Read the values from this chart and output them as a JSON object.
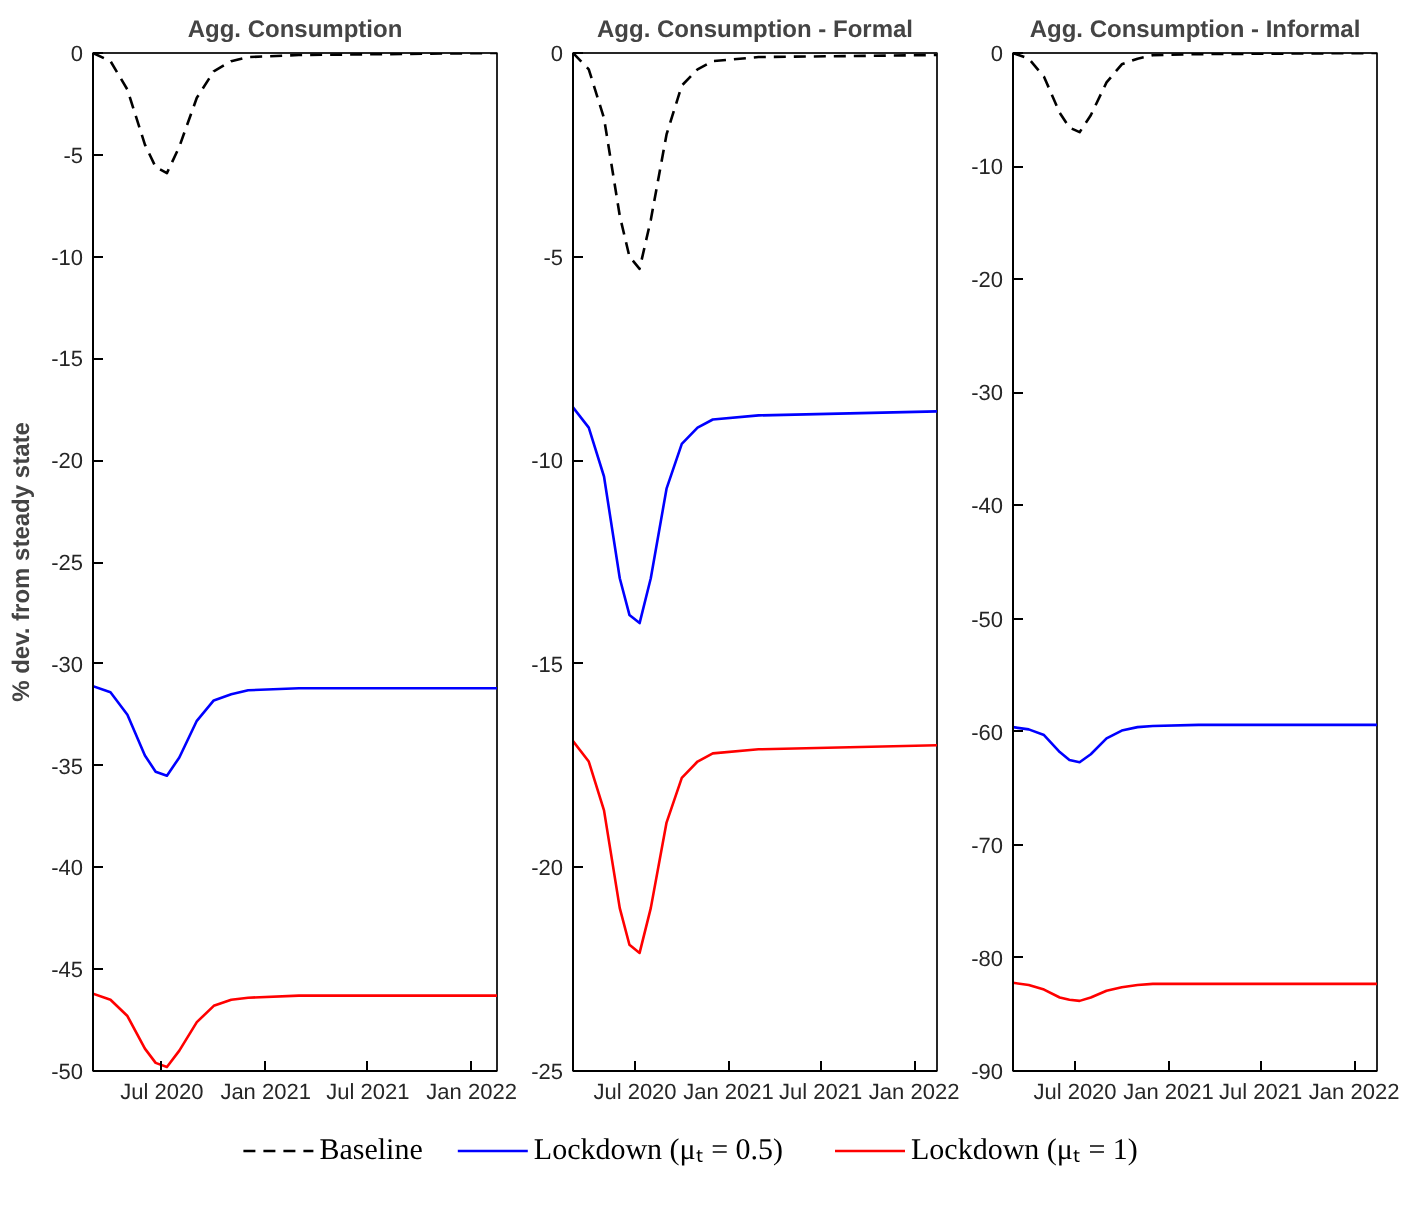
{
  "chart_data": [
    {
      "type": "line",
      "title": "Agg. Consumption",
      "ylabel": "% dev. from steady state",
      "legend": "bottom",
      "x": [
        "2020-03-01",
        "2020-04-01",
        "2020-05-01",
        "2020-06-01",
        "2020-06-20",
        "2020-07-10",
        "2020-08-01",
        "2020-09-01",
        "2020-10-01",
        "2020-11-01",
        "2020-12-01",
        "2021-03-01",
        "2022-02-15"
      ],
      "xlim": [
        "2020-03-01",
        "2022-02-15"
      ],
      "xticks": [
        {
          "value": "2020-07-01",
          "label": "Jul 2020"
        },
        {
          "value": "2021-01-01",
          "label": "Jan 2021"
        },
        {
          "value": "2021-07-01",
          "label": "Jul 2021"
        },
        {
          "value": "2022-01-01",
          "label": "Jan 2022"
        }
      ],
      "ylim": [
        -50,
        0
      ],
      "yticks": [
        -50,
        -45,
        -40,
        -35,
        -30,
        -25,
        -20,
        -15,
        -10,
        -5,
        0
      ],
      "series": [
        {
          "name": "Baseline",
          "color": "#000000",
          "line_style": "dashed",
          "values": [
            0,
            -0.4,
            -1.8,
            -4.5,
            -5.6,
            -5.9,
            -4.6,
            -2.2,
            -0.9,
            -0.4,
            -0.2,
            -0.1,
            0
          ]
        },
        {
          "name": "Lockdown (μₜ = 0.5)",
          "color": "#0000ff",
          "values": [
            -31.1,
            -31.4,
            -32.5,
            -34.5,
            -35.3,
            -35.5,
            -34.6,
            -32.8,
            -31.8,
            -31.5,
            -31.3,
            -31.2,
            -31.2
          ]
        },
        {
          "name": "Lockdown (μₜ = 1)",
          "color": "#ff0000",
          "values": [
            -46.2,
            -46.5,
            -47.3,
            -48.9,
            -49.6,
            -49.8,
            -49.0,
            -47.6,
            -46.8,
            -46.5,
            -46.4,
            -46.3,
            -46.3
          ]
        }
      ]
    },
    {
      "type": "line",
      "title": "Agg. Consumption - Formal",
      "x": [
        "2020-03-01",
        "2020-04-01",
        "2020-05-01",
        "2020-06-01",
        "2020-06-20",
        "2020-07-10",
        "2020-08-01",
        "2020-09-01",
        "2020-10-01",
        "2020-11-01",
        "2020-12-01",
        "2021-03-01",
        "2022-02-15"
      ],
      "xlim": [
        "2020-03-01",
        "2022-02-15"
      ],
      "xticks": [
        {
          "value": "2020-07-01",
          "label": "Jul 2020"
        },
        {
          "value": "2021-01-01",
          "label": "Jan 2021"
        },
        {
          "value": "2021-07-01",
          "label": "Jul 2021"
        },
        {
          "value": "2022-01-01",
          "label": "Jan 2022"
        }
      ],
      "ylim": [
        -25,
        0
      ],
      "yticks": [
        -25,
        -20,
        -15,
        -10,
        -5,
        0
      ],
      "series": [
        {
          "color": "#000000",
          "line_style": "dashed",
          "values": [
            0,
            -0.4,
            -1.6,
            -4.0,
            -5.0,
            -5.3,
            -4.1,
            -2.0,
            -0.8,
            -0.4,
            -0.2,
            -0.1,
            -0.05
          ]
        },
        {
          "color": "#0000ff",
          "values": [
            -8.7,
            -9.2,
            -10.4,
            -12.9,
            -13.8,
            -14.0,
            -12.9,
            -10.7,
            -9.6,
            -9.2,
            -9.0,
            -8.9,
            -8.8
          ]
        },
        {
          "color": "#ff0000",
          "values": [
            -16.9,
            -17.4,
            -18.6,
            -21.0,
            -21.9,
            -22.1,
            -21.0,
            -18.9,
            -17.8,
            -17.4,
            -17.2,
            -17.1,
            -17.0
          ]
        }
      ]
    },
    {
      "type": "line",
      "title": "Agg. Consumption - Informal",
      "x": [
        "2020-03-01",
        "2020-04-01",
        "2020-05-01",
        "2020-06-01",
        "2020-06-20",
        "2020-07-10",
        "2020-08-01",
        "2020-09-01",
        "2020-10-01",
        "2020-11-01",
        "2020-12-01",
        "2021-03-01",
        "2022-02-15"
      ],
      "xlim": [
        "2020-03-01",
        "2022-02-15"
      ],
      "xticks": [
        {
          "value": "2020-07-01",
          "label": "Jul 2020"
        },
        {
          "value": "2021-01-01",
          "label": "Jan 2021"
        },
        {
          "value": "2021-07-01",
          "label": "Jul 2021"
        },
        {
          "value": "2022-01-01",
          "label": "Jan 2022"
        }
      ],
      "ylim": [
        -90,
        0
      ],
      "yticks": [
        -90,
        -80,
        -70,
        -60,
        -50,
        -40,
        -30,
        -20,
        -10,
        0
      ],
      "series": [
        {
          "color": "#000000",
          "line_style": "dashed",
          "values": [
            0,
            -0.5,
            -2.1,
            -5.3,
            -6.6,
            -7.0,
            -5.5,
            -2.6,
            -1.0,
            -0.5,
            -0.2,
            -0.1,
            0
          ]
        },
        {
          "color": "#0000ff",
          "values": [
            -59.6,
            -59.8,
            -60.3,
            -61.8,
            -62.5,
            -62.7,
            -62.0,
            -60.6,
            -59.9,
            -59.6,
            -59.5,
            -59.4,
            -59.4
          ]
        },
        {
          "color": "#ff0000",
          "values": [
            -82.2,
            -82.4,
            -82.8,
            -83.5,
            -83.7,
            -83.8,
            -83.5,
            -82.9,
            -82.6,
            -82.4,
            -82.3,
            -82.3,
            -82.3
          ]
        }
      ]
    }
  ]
}
